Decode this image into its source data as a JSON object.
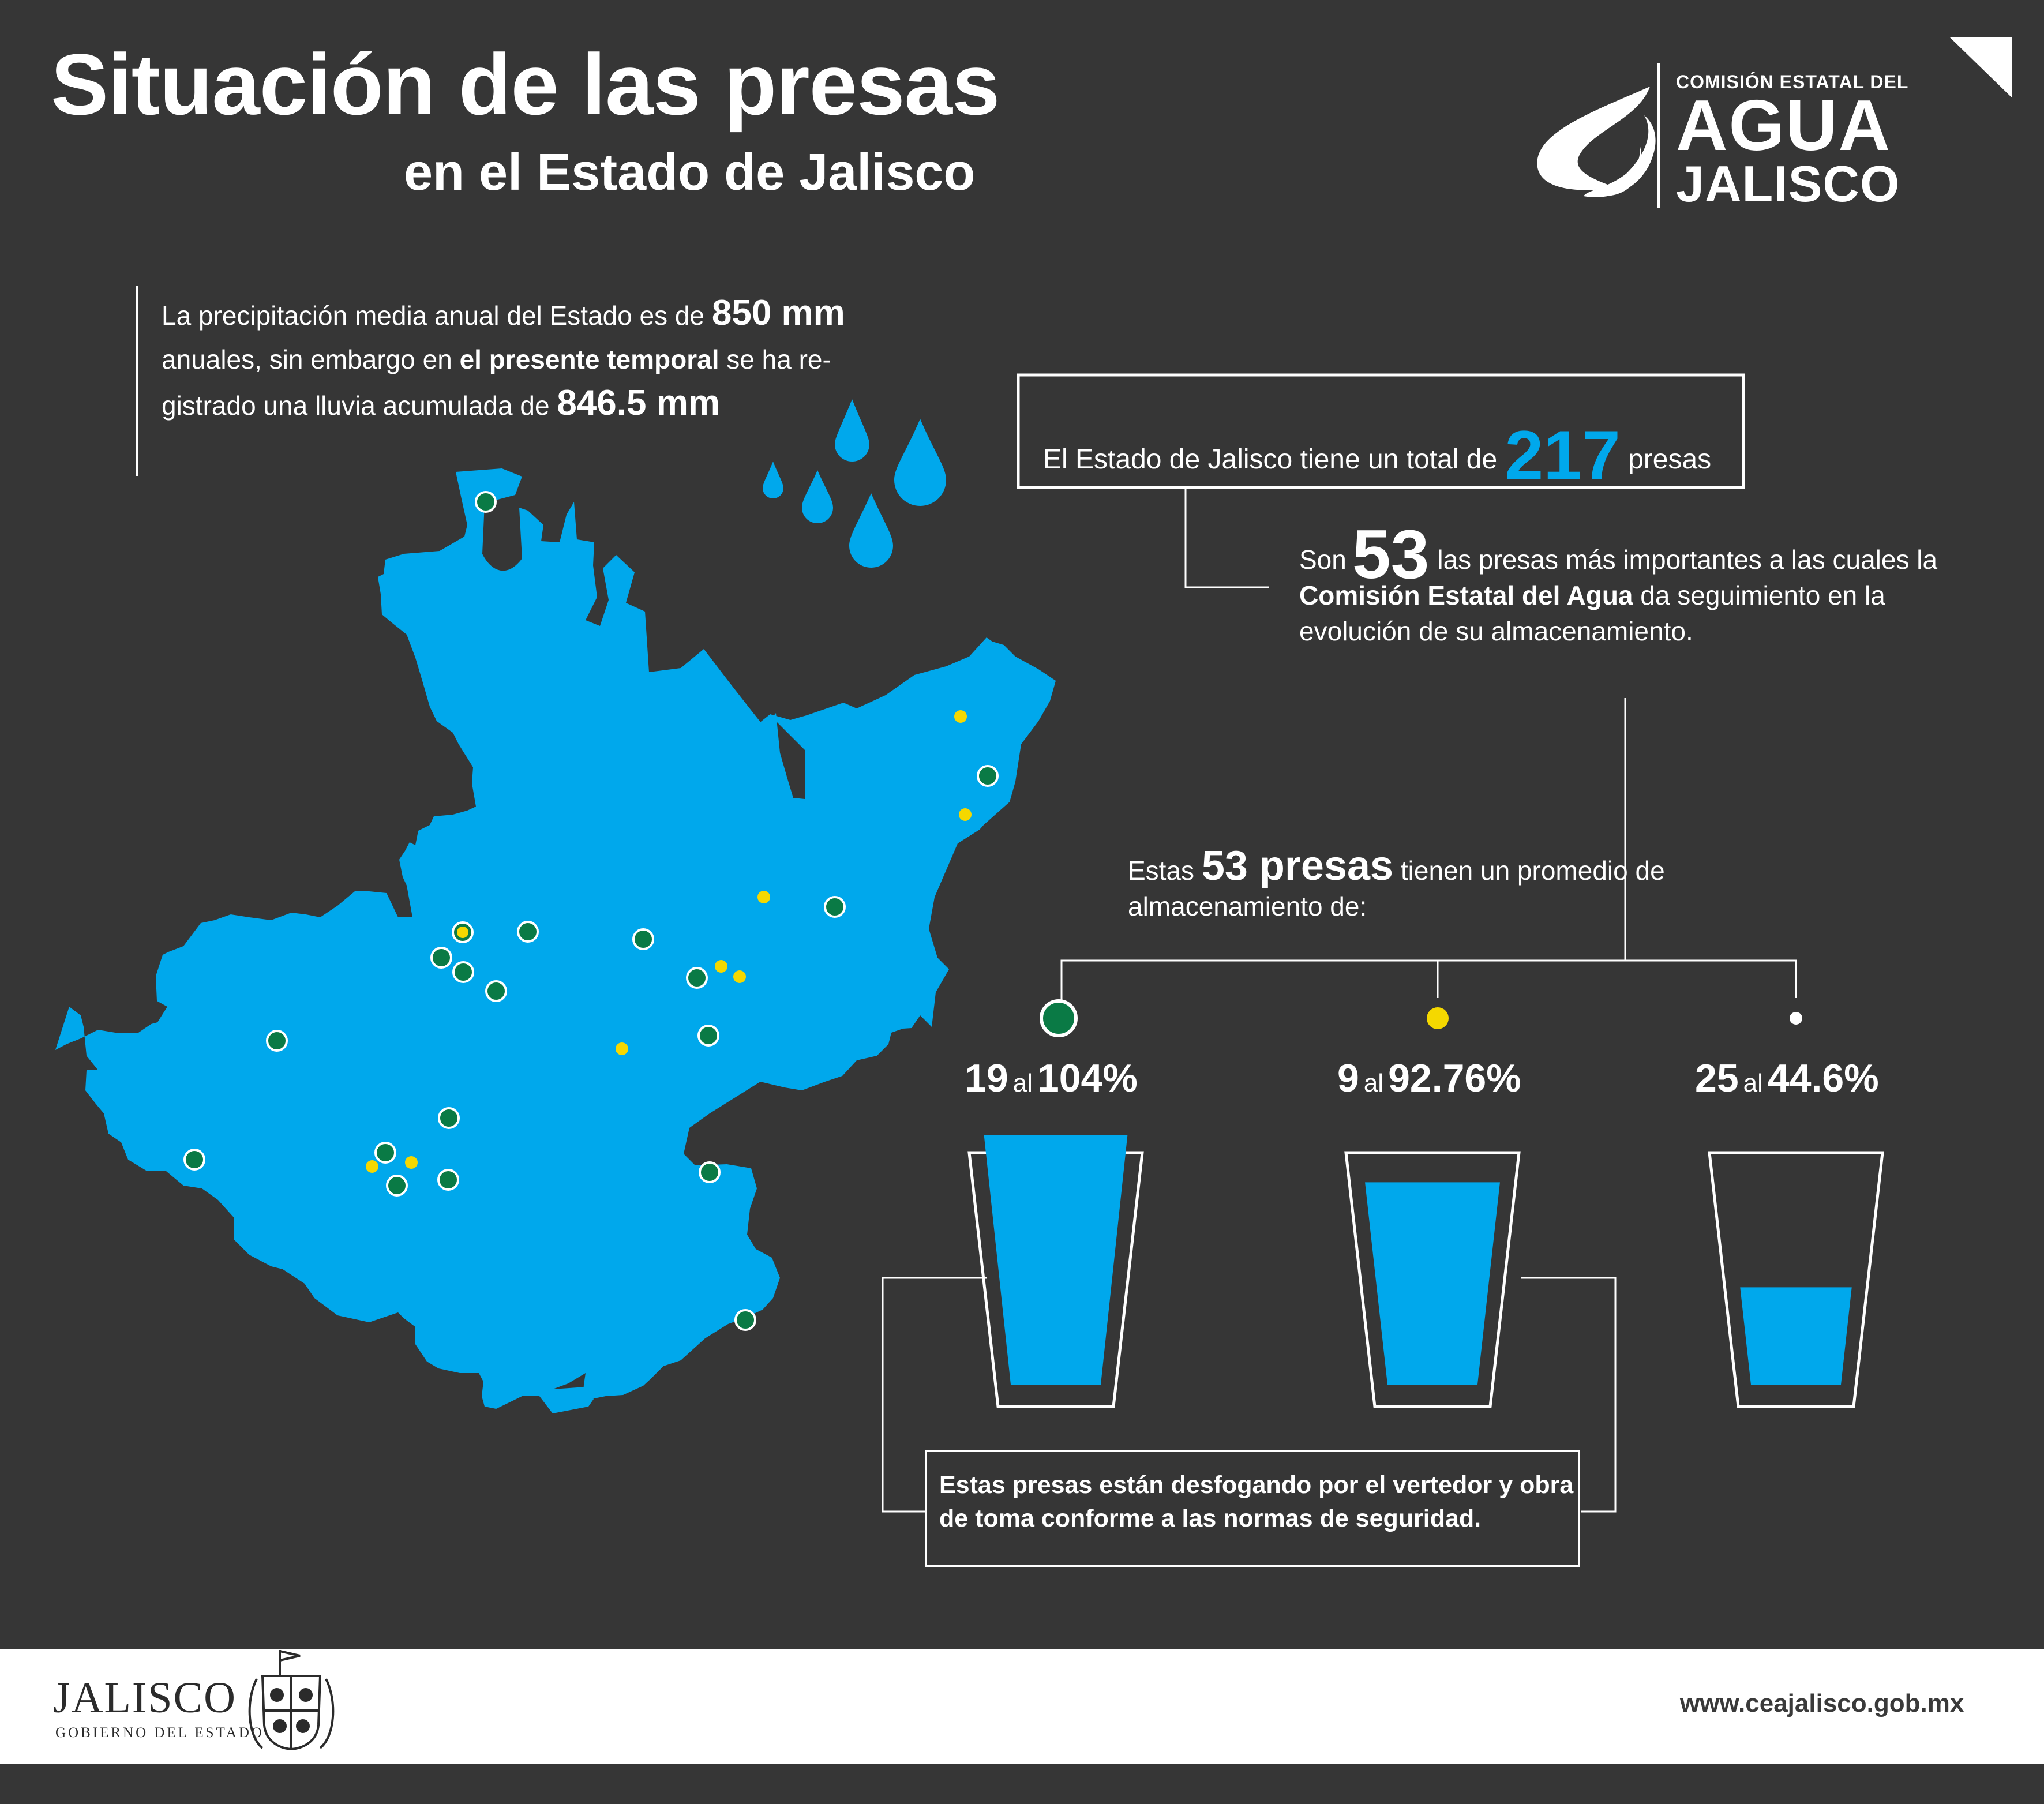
{
  "title": {
    "line1": "Situación de las presas",
    "line2": "en el Estado de Jalisco"
  },
  "logo": {
    "line1": "COMISIÓN  ESTATAL DEL",
    "line2": "AGUA",
    "line3": "JALISCO"
  },
  "precipitation": {
    "text1": "La precipitación media anual del Estado es de ",
    "value1": "850 mm",
    "text2": " anuales, sin embargo en ",
    "highlight": "el presente temporal",
    "text3": " se ha re-gistrado una lluvia acumulada de ",
    "value2": "846.5 mm"
  },
  "total": {
    "text_before": "El Estado de Jalisco tiene un total de ",
    "number": "217",
    "text_after": " presas"
  },
  "important": {
    "text_before": "Son",
    "number": "53",
    "text1": "las presas más importantes  a las cuales la ",
    "highlight": "Comisión Estatal del Agua",
    "text2": " da seguimiento en la evolución de su almacenamiento."
  },
  "average": {
    "text_before": "Estas ",
    "highlight": "53 presas",
    "text_after": " tienen un promedio de almacenamiento de:"
  },
  "groups": [
    {
      "count": "19",
      "connector": "al",
      "percent": "104%",
      "fill_fraction": 1.04,
      "color": "#0a7a45"
    },
    {
      "count": "9",
      "connector": "al",
      "percent": "92.76%",
      "fill_fraction": 0.9276,
      "color": "#f5d800"
    },
    {
      "count": "25",
      "connector": "al",
      "percent": "44.6%",
      "fill_fraction": 0.446,
      "color": "#ffffff"
    }
  ],
  "note": "Estas presas están desfogando por el vertedor y obra de toma conforme a las normas de seguridad.",
  "footer": {
    "gov_name": "JALISCO",
    "gov_sub": "GOBIERNO DEL ESTADO",
    "website": "www.ceajalisco.gob.mx"
  },
  "colors": {
    "background": "#363636",
    "water": "#00a8ec",
    "green_dot": "#0a7a45",
    "yellow_dot": "#f5d800"
  }
}
